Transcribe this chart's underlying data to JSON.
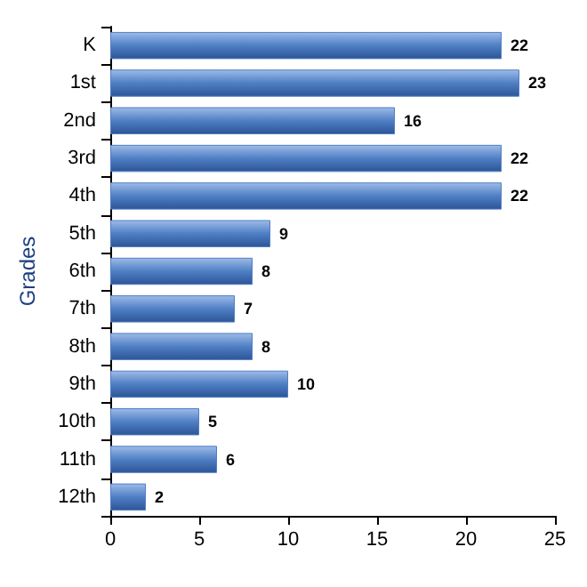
{
  "chart_data": {
    "type": "bar",
    "orientation": "horizontal",
    "ylabel": "Grades",
    "categories": [
      "K",
      "1st",
      "2nd",
      "3rd",
      "4th",
      "5th",
      "6th",
      "7th",
      "8th",
      "9th",
      "10th",
      "11th",
      "12th"
    ],
    "values": [
      22,
      23,
      16,
      22,
      22,
      9,
      8,
      7,
      8,
      10,
      5,
      6,
      2
    ],
    "color": "#4f7fc4",
    "xlim": [
      0,
      25
    ],
    "xticks": [
      0,
      5,
      10,
      15,
      20,
      25
    ],
    "data_labels": true
  }
}
